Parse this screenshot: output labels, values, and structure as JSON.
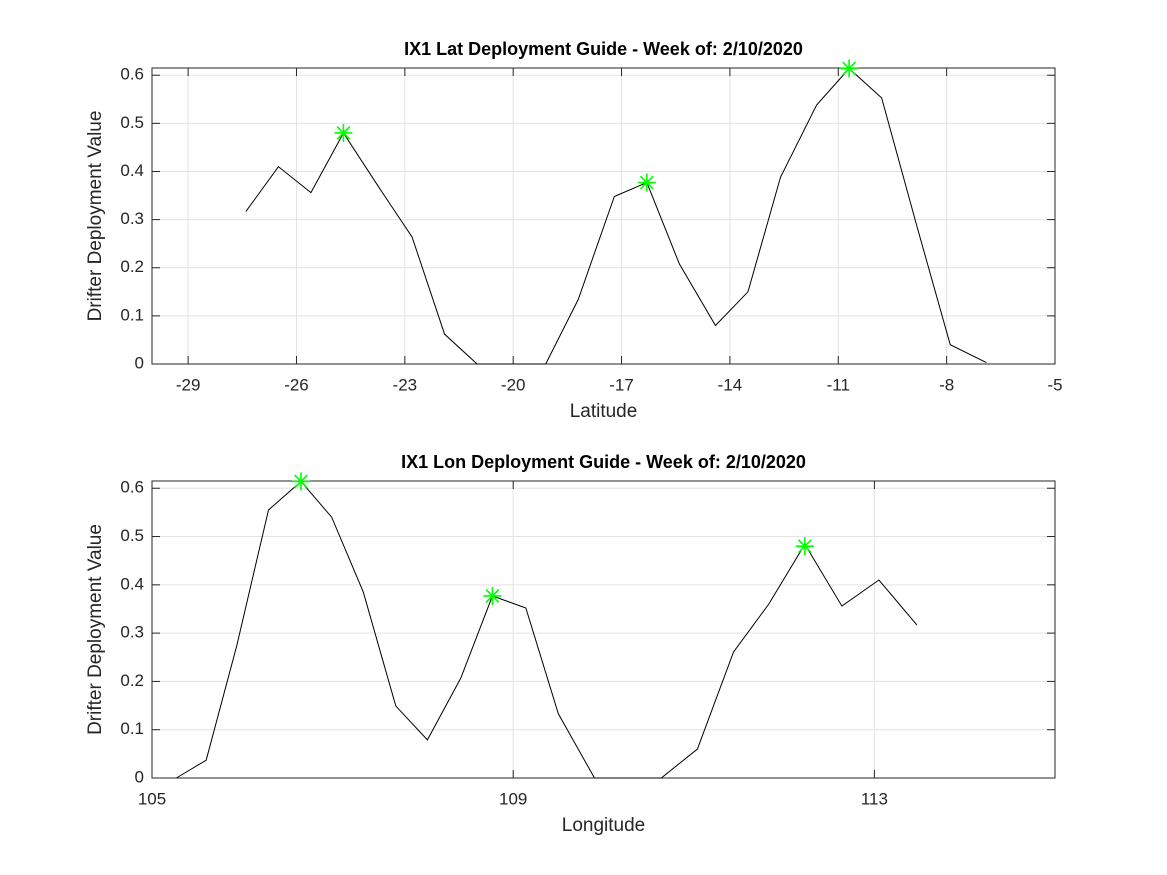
{
  "chart_data": [
    {
      "type": "line",
      "title": "IX1 Lat Deployment Guide - Week of: 2/10/2020",
      "xlabel": "Latitude",
      "ylabel": "Drifter Deployment Value",
      "xlim": [
        -30,
        -5
      ],
      "xticks": [
        -29,
        -26,
        -23,
        -20,
        -17,
        -14,
        -11,
        -8,
        -5
      ],
      "ylim": [
        0,
        0.615
      ],
      "yticks": [
        0,
        0.1,
        0.2,
        0.3,
        0.4,
        0.5,
        0.6
      ],
      "grid": true,
      "series": [
        {
          "color": "#000000",
          "marker": "none",
          "x": [
            -27.4,
            -26.5,
            -25.6,
            -24.7,
            -23.7,
            -22.8,
            -21.9,
            -21.0,
            -20.0,
            -19.1,
            -18.2,
            -17.2,
            -16.3,
            -15.4,
            -14.4,
            -13.5,
            -12.6,
            -11.6,
            -10.7,
            -9.8,
            -8.8,
            -7.9,
            -6.9
          ],
          "values": [
            0.317,
            0.41,
            0.356,
            0.48,
            0.365,
            0.264,
            0.062,
            0,
            0,
            0,
            0.134,
            0.348,
            0.377,
            0.208,
            0.08,
            0.15,
            0.388,
            0.538,
            0.614,
            0.553,
            0.28,
            0.04,
            0.003
          ]
        },
        {
          "color": "#00ff00",
          "marker": "asterisk",
          "x": [
            -24.7,
            -16.3,
            -10.7
          ],
          "values": [
            0.48,
            0.377,
            0.614
          ]
        }
      ]
    },
    {
      "type": "line",
      "title": "IX1 Lon Deployment Guide - Week of: 2/10/2020",
      "xlabel": "Longitude",
      "ylabel": "Drifter Deployment Value",
      "xlim": [
        105,
        115
      ],
      "xticks": [
        105,
        109,
        113
      ],
      "ylim": [
        0,
        0.615
      ],
      "yticks": [
        0,
        0.1,
        0.2,
        0.3,
        0.4,
        0.5,
        0.6
      ],
      "grid": true,
      "series": [
        {
          "color": "#000000",
          "marker": "none",
          "x": [
            105.27,
            105.6,
            105.94,
            106.29,
            106.65,
            106.99,
            107.34,
            107.7,
            108.05,
            108.42,
            108.77,
            109.14,
            109.5,
            109.9,
            110.27,
            110.64,
            111.04,
            111.44,
            111.83,
            112.23,
            112.64,
            113.05,
            113.47
          ],
          "values": [
            0,
            0.037,
            0.275,
            0.555,
            0.614,
            0.54,
            0.385,
            0.149,
            0.079,
            0.207,
            0.377,
            0.352,
            0.133,
            0,
            0,
            0,
            0.06,
            0.261,
            0.36,
            0.484,
            0.356,
            0.41,
            0.317
          ]
        },
        {
          "color": "#00ff00",
          "marker": "asterisk",
          "x": [
            106.65,
            108.77,
            112.23
          ],
          "values": [
            0.614,
            0.377,
            0.48
          ]
        }
      ]
    }
  ]
}
